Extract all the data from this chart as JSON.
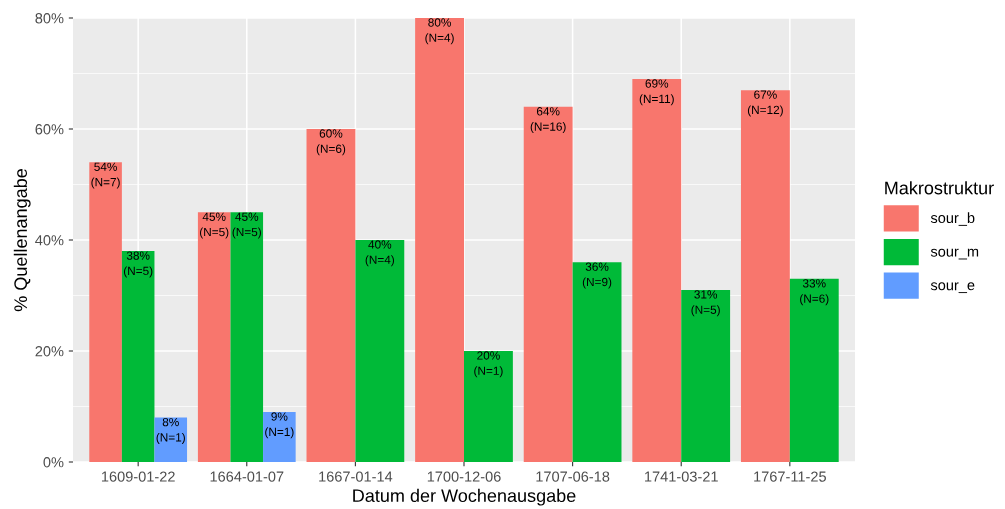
{
  "chart_data": {
    "type": "bar",
    "xlabel": "Datum der Wochenausgabe",
    "ylabel": "% Quellenangabe",
    "legend_title": "Makrostruktur",
    "categories": [
      "1609-01-22",
      "1664-01-07",
      "1667-01-14",
      "1700-12-06",
      "1707-06-18",
      "1741-03-21",
      "1767-11-25"
    ],
    "series": [
      {
        "name": "sour_b",
        "color": "#f8766d",
        "values": [
          54,
          45,
          60,
          80,
          64,
          69,
          67
        ],
        "value_labels": [
          "54%\n(N=7)",
          "45%\n(N=5)",
          "60%\n(N=6)",
          "80%\n(N=4)",
          "64%\n(N=16)",
          "69%\n(N=11)",
          "67%\n(N=12)"
        ]
      },
      {
        "name": "sour_m",
        "color": "#00ba38",
        "values": [
          38,
          45,
          40,
          20,
          36,
          31,
          33
        ],
        "value_labels": [
          "38%\n(N=5)",
          "45%\n(N=5)",
          "40%\n(N=4)",
          "20%\n(N=1)",
          "36%\n(N=9)",
          "31%\n(N=5)",
          "33%\n(N=6)"
        ]
      },
      {
        "name": "sour_e",
        "color": "#619cff",
        "values": [
          8,
          9,
          null,
          null,
          null,
          null,
          null
        ],
        "value_labels": [
          "8%\n(N=1)",
          "9%\n(N=1)",
          null,
          null,
          null,
          null,
          null
        ]
      }
    ],
    "ylim": [
      0,
      80
    ],
    "yticks": [
      {
        "value": 0,
        "label": "0%"
      },
      {
        "value": 20,
        "label": "20%"
      },
      {
        "value": 40,
        "label": "40%"
      },
      {
        "value": 60,
        "label": "60%"
      },
      {
        "value": 80,
        "label": "80%"
      }
    ],
    "grid": true,
    "legend": "right"
  }
}
